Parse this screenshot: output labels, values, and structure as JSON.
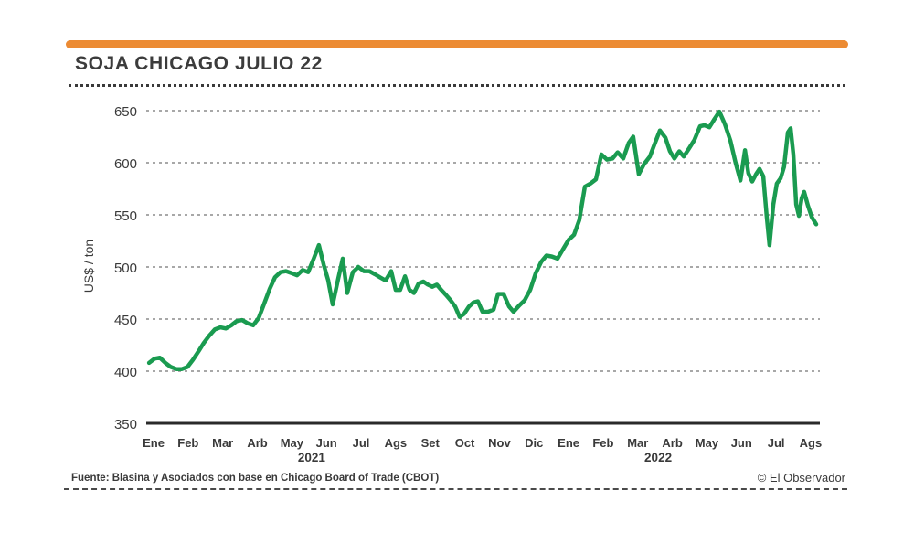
{
  "header": {
    "title": "SOJA CHICAGO JULIO 22"
  },
  "footer": {
    "source": "Fuente: Blasina y Asociados con base en Chicago Board of Trade (CBOT)",
    "credit": "© El Observador"
  },
  "colors": {
    "accent_orange": "#EC8B33",
    "line_green": "#1A9B50",
    "text_dark": "#3A3A3A",
    "grid_gray": "#8C8C8C",
    "axis_dark": "#2A2A2A"
  },
  "chart_data": {
    "type": "line",
    "title": "SOJA CHICAGO JULIO 22",
    "xlabel": "",
    "ylabel": "US$ / ton",
    "ylim": [
      350,
      650
    ],
    "yticks": [
      650,
      600,
      550,
      500,
      450,
      400,
      350
    ],
    "grid": "dashed-horizontal",
    "legend": "none",
    "x_tick_labels": [
      "Ene",
      "Feb",
      "Mar",
      "Arb",
      "May",
      "Jun",
      "Jul",
      "Ags",
      "Set",
      "Oct",
      "Nov",
      "Dic",
      "Ene",
      "Feb",
      "Mar",
      "Arb",
      "May",
      "Jun",
      "Jul",
      "Ags"
    ],
    "year_labels": [
      {
        "label": "2021",
        "t": 4.57
      },
      {
        "label": "2022",
        "t": 14.59
      }
    ],
    "series": [
      {
        "name": "Soja Chicago Julio 22 (US$/ton)",
        "color": "#1A9B50",
        "points": [
          [
            -0.13,
            408
          ],
          [
            0.03,
            412
          ],
          [
            0.18,
            413
          ],
          [
            0.34,
            408
          ],
          [
            0.5,
            404
          ],
          [
            0.66,
            402
          ],
          [
            0.82,
            402
          ],
          [
            0.98,
            404
          ],
          [
            1.14,
            411
          ],
          [
            1.3,
            419
          ],
          [
            1.45,
            427
          ],
          [
            1.61,
            434
          ],
          [
            1.77,
            440
          ],
          [
            1.93,
            442
          ],
          [
            2.09,
            441
          ],
          [
            2.25,
            444
          ],
          [
            2.4,
            448
          ],
          [
            2.56,
            449
          ],
          [
            2.72,
            446
          ],
          [
            2.88,
            444
          ],
          [
            3.04,
            451
          ],
          [
            3.2,
            465
          ],
          [
            3.36,
            479
          ],
          [
            3.51,
            490
          ],
          [
            3.67,
            495
          ],
          [
            3.83,
            496
          ],
          [
            3.99,
            494
          ],
          [
            4.15,
            492
          ],
          [
            4.31,
            497
          ],
          [
            4.47,
            495
          ],
          [
            4.62,
            507
          ],
          [
            4.78,
            521
          ],
          [
            4.92,
            502
          ],
          [
            5.05,
            487
          ],
          [
            5.18,
            464
          ],
          [
            5.34,
            489
          ],
          [
            5.47,
            508
          ],
          [
            5.6,
            475
          ],
          [
            5.76,
            495
          ],
          [
            5.92,
            500
          ],
          [
            6.08,
            496
          ],
          [
            6.24,
            496
          ],
          [
            6.4,
            493
          ],
          [
            6.55,
            490
          ],
          [
            6.71,
            487
          ],
          [
            6.87,
            496
          ],
          [
            7.0,
            478
          ],
          [
            7.13,
            478
          ],
          [
            7.27,
            491
          ],
          [
            7.4,
            478
          ],
          [
            7.53,
            475
          ],
          [
            7.66,
            484
          ],
          [
            7.8,
            486
          ],
          [
            7.93,
            483
          ],
          [
            8.06,
            481
          ],
          [
            8.19,
            483
          ],
          [
            8.32,
            478
          ],
          [
            8.46,
            473
          ],
          [
            8.59,
            468
          ],
          [
            8.72,
            462
          ],
          [
            8.85,
            452
          ],
          [
            8.98,
            455
          ],
          [
            9.12,
            462
          ],
          [
            9.25,
            466
          ],
          [
            9.38,
            467
          ],
          [
            9.51,
            457
          ],
          [
            9.67,
            457
          ],
          [
            9.83,
            459
          ],
          [
            9.96,
            474
          ],
          [
            10.12,
            474
          ],
          [
            10.28,
            462
          ],
          [
            10.41,
            457
          ],
          [
            10.57,
            463
          ],
          [
            10.73,
            468
          ],
          [
            10.89,
            478
          ],
          [
            11.05,
            494
          ],
          [
            11.21,
            505
          ],
          [
            11.36,
            511
          ],
          [
            11.52,
            510
          ],
          [
            11.68,
            508
          ],
          [
            11.84,
            517
          ],
          [
            12.0,
            526
          ],
          [
            12.16,
            531
          ],
          [
            12.31,
            545
          ],
          [
            12.47,
            577
          ],
          [
            12.63,
            580
          ],
          [
            12.79,
            584
          ],
          [
            12.95,
            608
          ],
          [
            13.11,
            603
          ],
          [
            13.27,
            604
          ],
          [
            13.42,
            610
          ],
          [
            13.58,
            604
          ],
          [
            13.74,
            619
          ],
          [
            13.87,
            625
          ],
          [
            14.03,
            589
          ],
          [
            14.19,
            599
          ],
          [
            14.35,
            606
          ],
          [
            14.51,
            620
          ],
          [
            14.64,
            631
          ],
          [
            14.8,
            624
          ],
          [
            14.93,
            611
          ],
          [
            15.06,
            604
          ],
          [
            15.2,
            611
          ],
          [
            15.33,
            606
          ],
          [
            15.49,
            614
          ],
          [
            15.64,
            622
          ],
          [
            15.8,
            635
          ],
          [
            15.93,
            636
          ],
          [
            16.07,
            634
          ],
          [
            16.2,
            641
          ],
          [
            16.36,
            649
          ],
          [
            16.52,
            637
          ],
          [
            16.68,
            621
          ],
          [
            16.83,
            600
          ],
          [
            16.97,
            583
          ],
          [
            17.1,
            612
          ],
          [
            17.2,
            590
          ],
          [
            17.31,
            582
          ],
          [
            17.42,
            589
          ],
          [
            17.52,
            594
          ],
          [
            17.63,
            587
          ],
          [
            17.73,
            548
          ],
          [
            17.81,
            521
          ],
          [
            17.92,
            560
          ],
          [
            18.02,
            580
          ],
          [
            18.13,
            585
          ],
          [
            18.23,
            596
          ],
          [
            18.34,
            629
          ],
          [
            18.42,
            633
          ],
          [
            18.5,
            608
          ],
          [
            18.58,
            560
          ],
          [
            18.66,
            549
          ],
          [
            18.74,
            566
          ],
          [
            18.81,
            572
          ],
          [
            18.92,
            559
          ],
          [
            19.03,
            548
          ],
          [
            19.16,
            541
          ]
        ]
      }
    ]
  }
}
